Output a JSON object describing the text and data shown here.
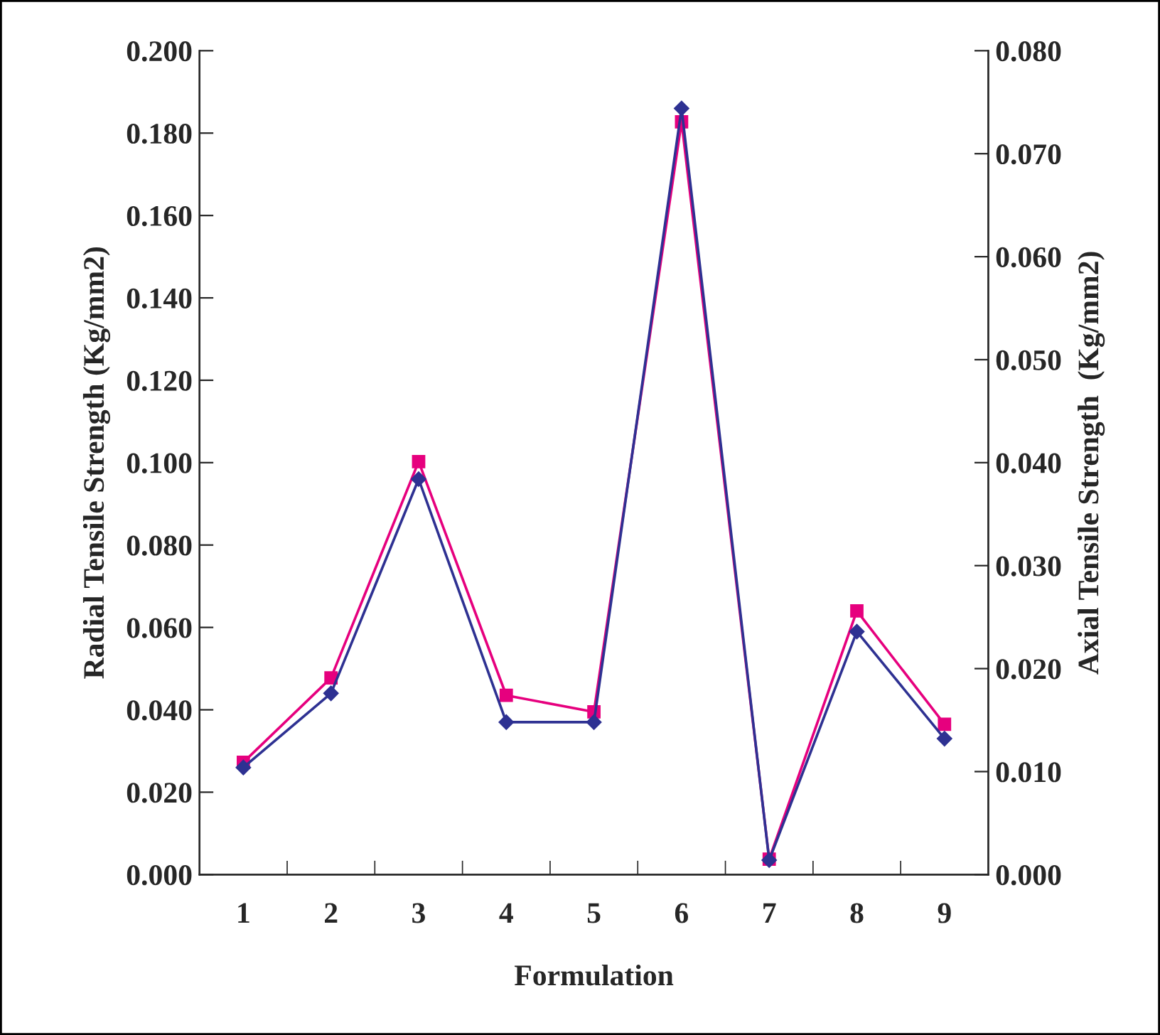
{
  "chart_data": {
    "type": "line",
    "xlabel": "Formulation",
    "ylabel": "Radial Tensile Strength (Kg/mm2)",
    "y2label": "Axial Tensile Strength  (Kg/mm2)",
    "categories": [
      "1",
      "2",
      "3",
      "4",
      "5",
      "6",
      "7",
      "8",
      "9"
    ],
    "series": [
      {
        "color": "#2e3192",
        "marker": "diamond",
        "values": [
          0.026,
          0.044,
          0.096,
          0.037,
          0.037,
          0.186,
          0.0035,
          0.059,
          0.033
        ]
      },
      {
        "color": "#e6007e",
        "marker": "square",
        "axis": "y2",
        "values": [
          0.0109,
          0.0191,
          0.0401,
          0.0174,
          0.0158,
          0.0731,
          0.0015,
          0.0256,
          0.0146
        ]
      }
    ],
    "ylim": [
      0,
      0.2
    ],
    "yticks": [
      {
        "value": 0,
        "label": "0.000"
      },
      {
        "value": 0.02,
        "label": "0.020"
      },
      {
        "value": 0.04,
        "label": "0.040"
      },
      {
        "value": 0.06,
        "label": "0.060"
      },
      {
        "value": 0.08,
        "label": "0.080"
      },
      {
        "value": 0.1,
        "label": "0.100"
      },
      {
        "value": 0.12,
        "label": "0.120"
      },
      {
        "value": 0.14,
        "label": "0.140"
      },
      {
        "value": 0.16,
        "label": "0.160"
      },
      {
        "value": 0.18,
        "label": "0.180"
      },
      {
        "value": 0.2,
        "label": "0.200"
      }
    ],
    "y2lim": [
      0,
      0.08
    ],
    "y2ticks": [
      {
        "value": 0,
        "label": "0.000"
      },
      {
        "value": 0.01,
        "label": "0.010"
      },
      {
        "value": 0.02,
        "label": "0.020"
      },
      {
        "value": 0.03,
        "label": "0.030"
      },
      {
        "value": 0.04,
        "label": "0.040"
      },
      {
        "value": 0.05,
        "label": "0.050"
      },
      {
        "value": 0.06,
        "label": "0.060"
      },
      {
        "value": 0.07,
        "label": "0.070"
      },
      {
        "value": 0.08,
        "label": "0.080"
      }
    ],
    "grid": false,
    "legend": false
  }
}
